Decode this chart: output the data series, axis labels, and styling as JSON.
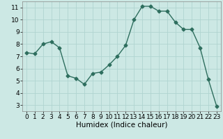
{
  "x": [
    0,
    1,
    2,
    3,
    4,
    5,
    6,
    7,
    8,
    9,
    10,
    11,
    12,
    13,
    14,
    15,
    16,
    17,
    18,
    19,
    20,
    21,
    22,
    23
  ],
  "y": [
    7.3,
    7.2,
    8.0,
    8.2,
    7.7,
    5.4,
    5.2,
    4.7,
    5.6,
    5.7,
    6.3,
    7.0,
    7.9,
    10.0,
    11.1,
    11.1,
    10.7,
    10.7,
    9.8,
    9.2,
    9.2,
    7.7,
    5.1,
    2.9
  ],
  "line_color": "#2e6e5e",
  "marker": "D",
  "marker_size": 2.5,
  "bg_color": "#cce8e4",
  "grid_color": "#b0d4d0",
  "xlabel": "Humidex (Indice chaleur)",
  "xlim": [
    -0.5,
    23.5
  ],
  "ylim": [
    2.5,
    11.5
  ],
  "yticks": [
    3,
    4,
    5,
    6,
    7,
    8,
    9,
    10,
    11
  ],
  "xticks": [
    0,
    1,
    2,
    3,
    4,
    5,
    6,
    7,
    8,
    9,
    10,
    11,
    12,
    13,
    14,
    15,
    16,
    17,
    18,
    19,
    20,
    21,
    22,
    23
  ],
  "tick_fontsize": 6.5,
  "xlabel_fontsize": 7.5,
  "line_width": 1.0,
  "spine_color": "#888888"
}
